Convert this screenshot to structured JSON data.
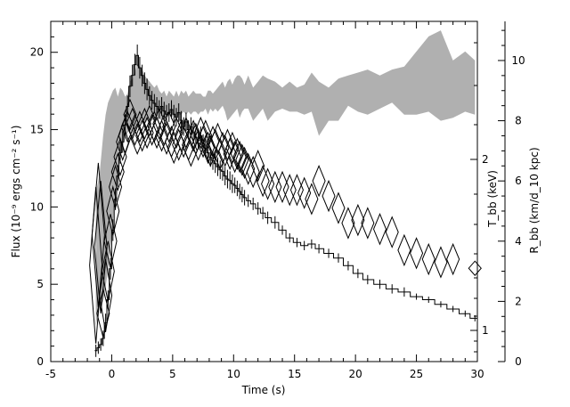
{
  "chart_data": {
    "type": "line",
    "xlabel": "Time (s)",
    "ylabel": "Flux (10⁻⁹ ergs cm⁻² s⁻¹)",
    "ylabel_mid_right": "T_bb (keV)",
    "ylabel_right": "R_bb (km/d_10 kpc)",
    "xlim": [
      -5,
      30
    ],
    "ylim": [
      0,
      22
    ],
    "y_mid_right_ticks": [
      1,
      2
    ],
    "y_right_lim": [
      0,
      11.3
    ],
    "grid": false,
    "x_ticks": [
      "-5",
      "0",
      "5",
      "10",
      "15",
      "20",
      "25",
      "30"
    ],
    "y_ticks": [
      "0",
      "5",
      "10",
      "15",
      "20"
    ],
    "y_mid_right_tick_labels": [
      "1",
      "2"
    ],
    "y_right_ticks": [
      "0",
      "2",
      "4",
      "6",
      "8",
      "10"
    ],
    "series": [
      {
        "style": "step-with-errorbars",
        "color": "#000000",
        "x": [
          -1.3,
          -1.1,
          -0.9,
          -0.7,
          -0.5,
          -0.3,
          -0.1,
          0.1,
          0.3,
          0.5,
          0.7,
          0.9,
          1.1,
          1.3,
          1.5,
          1.7,
          1.9,
          2.1,
          2.3,
          2.5,
          2.7,
          2.9,
          3.1,
          3.3,
          3.5,
          3.7,
          3.9,
          4.1,
          4.3,
          4.5,
          4.7,
          4.9,
          5.1,
          5.3,
          5.5,
          5.7,
          5.9,
          6.1,
          6.3,
          6.5,
          6.7,
          6.9,
          7.1,
          7.3,
          7.5,
          7.7,
          7.9,
          8.1,
          8.3,
          8.5,
          8.7,
          8.9,
          9.1,
          9.3,
          9.5,
          9.7,
          9.9,
          10.1,
          10.3,
          10.5,
          10.7,
          10.9,
          11.2,
          11.6,
          12.0,
          12.4,
          12.8,
          13.4,
          14.0,
          14.6,
          15.2,
          15.8,
          16.4,
          17.0,
          17.8,
          18.6,
          19.4,
          20.2,
          21.0,
          22.0,
          23.0,
          24.0,
          25.0,
          26.0,
          27.0,
          28.0,
          29.0,
          29.8
        ],
        "values": [
          0.7,
          0.9,
          1.1,
          1.5,
          2.5,
          4.0,
          6.0,
          8.5,
          10.5,
          12.0,
          13.5,
          14.2,
          15.3,
          16.5,
          17.8,
          18.5,
          19.2,
          19.8,
          19.0,
          18.5,
          18.0,
          17.6,
          17.2,
          16.9,
          16.7,
          16.5,
          16.3,
          16.5,
          16.2,
          16.0,
          16.1,
          16.3,
          16.0,
          15.8,
          16.1,
          15.6,
          15.2,
          15.5,
          15.0,
          15.2,
          14.8,
          14.5,
          14.3,
          14.6,
          14.1,
          13.8,
          13.5,
          13.2,
          13.0,
          12.8,
          12.6,
          12.4,
          12.3,
          12.0,
          11.8,
          11.7,
          11.5,
          11.4,
          11.2,
          11.0,
          10.8,
          10.6,
          10.4,
          10.2,
          9.9,
          9.6,
          9.3,
          9.0,
          8.5,
          8.0,
          7.7,
          7.5,
          7.6,
          7.3,
          7.0,
          6.7,
          6.2,
          5.7,
          5.3,
          5.0,
          4.7,
          4.5,
          4.2,
          4.0,
          3.7,
          3.4,
          3.1,
          2.8
        ],
        "errors": [
          0.4,
          0.4,
          0.4,
          0.5,
          0.6,
          0.6,
          0.7,
          0.7,
          0.7,
          0.7,
          0.7,
          0.7,
          0.7,
          0.7,
          0.7,
          0.7,
          0.7,
          0.7,
          0.7,
          0.7,
          0.7,
          0.7,
          0.6,
          0.6,
          0.6,
          0.6,
          0.6,
          0.6,
          0.6,
          0.6,
          0.6,
          0.6,
          0.6,
          0.6,
          0.6,
          0.6,
          0.6,
          0.6,
          0.6,
          0.6,
          0.6,
          0.6,
          0.6,
          0.6,
          0.6,
          0.6,
          0.6,
          0.6,
          0.6,
          0.6,
          0.6,
          0.6,
          0.6,
          0.6,
          0.6,
          0.6,
          0.6,
          0.5,
          0.5,
          0.5,
          0.5,
          0.5,
          0.4,
          0.4,
          0.4,
          0.4,
          0.4,
          0.4,
          0.3,
          0.3,
          0.3,
          0.3,
          0.3,
          0.3,
          0.3,
          0.3,
          0.3,
          0.3,
          0.3,
          0.3,
          0.3,
          0.3,
          0.2,
          0.2,
          0.2,
          0.2,
          0.2,
          0.2
        ]
      },
      {
        "style": "diamond-errorbars",
        "axis": "right",
        "color": "#000000",
        "x": [
          -1.3,
          -1.1,
          -0.9,
          -0.7,
          -0.5,
          -0.3,
          -0.1,
          0.1,
          0.3,
          0.5,
          0.7,
          0.9,
          1.1,
          1.3,
          1.5,
          1.7,
          1.9,
          2.1,
          2.3,
          2.5,
          2.7,
          2.9,
          3.1,
          3.3,
          3.5,
          3.7,
          3.9,
          4.1,
          4.3,
          4.5,
          4.7,
          4.9,
          5.1,
          5.3,
          5.5,
          5.7,
          5.9,
          6.1,
          6.3,
          6.5,
          6.7,
          6.9,
          7.1,
          7.3,
          7.5,
          7.7,
          7.9,
          8.1,
          8.3,
          8.5,
          8.7,
          8.9,
          9.1,
          9.3,
          9.5,
          9.7,
          9.9,
          10.1,
          10.3,
          10.5,
          10.7,
          10.9,
          11.2,
          11.6,
          12.0,
          12.4,
          12.8,
          13.4,
          14.0,
          14.6,
          15.2,
          15.8,
          16.4,
          17.0,
          17.8,
          18.6,
          19.4,
          20.2,
          21.0,
          22.0,
          23.0,
          24.0,
          25.0,
          26.0,
          27.0,
          28.0,
          29.8
        ],
        "values": [
          3.2,
          4.2,
          3.8,
          1.6,
          2.2,
          3.0,
          4.0,
          5.0,
          5.8,
          6.3,
          6.8,
          7.3,
          7.5,
          7.8,
          8.2,
          7.9,
          7.7,
          7.4,
          7.8,
          7.5,
          7.9,
          7.6,
          8.0,
          7.7,
          7.8,
          7.6,
          7.9,
          7.5,
          7.7,
          7.4,
          7.8,
          7.3,
          7.1,
          7.6,
          7.2,
          7.5,
          7.3,
          7.6,
          7.2,
          7.0,
          7.5,
          7.4,
          7.2,
          7.6,
          7.3,
          7.5,
          7.1,
          7.0,
          7.3,
          7.2,
          7.4,
          6.9,
          7.1,
          7.0,
          7.2,
          6.9,
          7.1,
          6.8,
          6.9,
          6.8,
          6.7,
          6.6,
          6.4,
          6.3,
          6.5,
          6.0,
          5.9,
          5.8,
          5.8,
          5.7,
          5.7,
          5.6,
          5.4,
          6.0,
          5.5,
          5.1,
          4.6,
          4.7,
          4.6,
          4.4,
          4.3,
          3.7,
          3.6,
          3.4,
          3.3,
          3.4,
          3.1
        ],
        "errors": [
          2.6,
          2.4,
          2.2,
          0.8,
          1.2,
          1.0,
          0.9,
          0.8,
          0.7,
          0.6,
          0.6,
          0.6,
          0.6,
          0.5,
          0.5,
          0.5,
          0.5,
          0.5,
          0.5,
          0.5,
          0.5,
          0.5,
          0.5,
          0.5,
          0.5,
          0.5,
          0.5,
          0.5,
          0.5,
          0.5,
          0.5,
          0.5,
          0.5,
          0.5,
          0.5,
          0.5,
          0.5,
          0.5,
          0.5,
          0.5,
          0.5,
          0.5,
          0.5,
          0.5,
          0.5,
          0.5,
          0.5,
          0.5,
          0.5,
          0.5,
          0.5,
          0.5,
          0.5,
          0.5,
          0.5,
          0.5,
          0.5,
          0.5,
          0.5,
          0.5,
          0.5,
          0.5,
          0.5,
          0.5,
          0.5,
          0.5,
          0.5,
          0.5,
          0.5,
          0.5,
          0.5,
          0.5,
          0.5,
          0.5,
          0.5,
          0.5,
          0.5,
          0.5,
          0.5,
          0.5,
          0.5,
          0.5,
          0.5,
          0.5,
          0.5,
          0.5,
          0.2
        ]
      },
      {
        "style": "filled-band",
        "axis": "right",
        "color": "#b0b0b0",
        "x": [
          -1.3,
          -1.0,
          -0.7,
          -0.5,
          -0.3,
          -0.1,
          0.1,
          0.3,
          0.5,
          0.7,
          0.9,
          1.1,
          1.3,
          1.5,
          1.7,
          1.9,
          2.1,
          2.3,
          2.5,
          2.7,
          2.9,
          3.1,
          3.3,
          3.5,
          3.7,
          3.9,
          4.1,
          4.3,
          4.5,
          4.7,
          4.9,
          5.1,
          5.3,
          5.5,
          5.7,
          5.9,
          6.1,
          6.3,
          6.5,
          6.7,
          6.9,
          7.1,
          7.3,
          7.5,
          7.7,
          7.9,
          8.1,
          8.3,
          8.5,
          8.7,
          8.9,
          9.1,
          9.3,
          9.5,
          9.7,
          9.9,
          10.1,
          10.3,
          10.5,
          10.7,
          10.9,
          11.2,
          11.6,
          12.0,
          12.4,
          12.8,
          13.4,
          14.0,
          14.6,
          15.2,
          15.8,
          16.4,
          17.0,
          17.8,
          18.6,
          19.4,
          20.2,
          21.0,
          22.0,
          23.0,
          24.0,
          25.0,
          26.0,
          27.0,
          28.0,
          29.0,
          29.8
        ],
        "low": [
          1.2,
          1.8,
          2.0,
          2.5,
          3.0,
          3.8,
          4.6,
          5.4,
          6.2,
          6.8,
          7.2,
          7.4,
          7.6,
          7.7,
          7.6,
          7.7,
          7.8,
          7.9,
          8.0,
          7.9,
          8.0,
          8.1,
          8.0,
          8.1,
          8.0,
          8.1,
          8.0,
          8.2,
          8.1,
          8.2,
          8.1,
          8.2,
          8.1,
          8.2,
          8.2,
          8.3,
          8.2,
          8.3,
          8.2,
          8.3,
          8.3,
          8.2,
          8.3,
          8.3,
          8.4,
          8.2,
          8.4,
          8.3,
          8.4,
          8.3,
          8.4,
          8.5,
          8.3,
          8.0,
          8.1,
          8.2,
          8.3,
          8.4,
          8.1,
          8.3,
          8.4,
          8.4,
          8.0,
          8.2,
          8.4,
          8.0,
          8.3,
          8.4,
          8.3,
          8.3,
          8.2,
          8.3,
          7.5,
          8.0,
          8.0,
          8.5,
          8.3,
          8.2,
          8.4,
          8.6,
          8.2,
          8.2,
          8.3,
          8.0,
          8.1,
          8.3,
          8.2
        ],
        "high": [
          5.6,
          6.2,
          7.5,
          8.2,
          8.6,
          8.8,
          9.0,
          9.1,
          8.8,
          9.1,
          9.0,
          8.8,
          8.9,
          9.3,
          9.4,
          9.6,
          9.9,
          9.8,
          9.7,
          9.5,
          9.4,
          9.3,
          9.2,
          9.1,
          9.2,
          9.0,
          8.9,
          9.0,
          8.8,
          9.0,
          8.9,
          8.8,
          9.0,
          8.8,
          9.0,
          8.9,
          9.0,
          8.8,
          8.9,
          9.0,
          8.9,
          8.9,
          8.9,
          8.8,
          8.8,
          9.0,
          9.0,
          8.9,
          9.0,
          9.1,
          9.2,
          9.3,
          9.1,
          9.3,
          9.4,
          9.2,
          9.4,
          9.5,
          9.5,
          9.4,
          9.2,
          9.5,
          9.1,
          9.3,
          9.5,
          9.4,
          9.3,
          9.1,
          9.3,
          9.1,
          9.2,
          9.6,
          9.3,
          9.1,
          9.4,
          9.5,
          9.6,
          9.7,
          9.5,
          9.7,
          9.8,
          10.3,
          10.8,
          11.0,
          10.0,
          10.3,
          10.0
        ]
      }
    ]
  }
}
